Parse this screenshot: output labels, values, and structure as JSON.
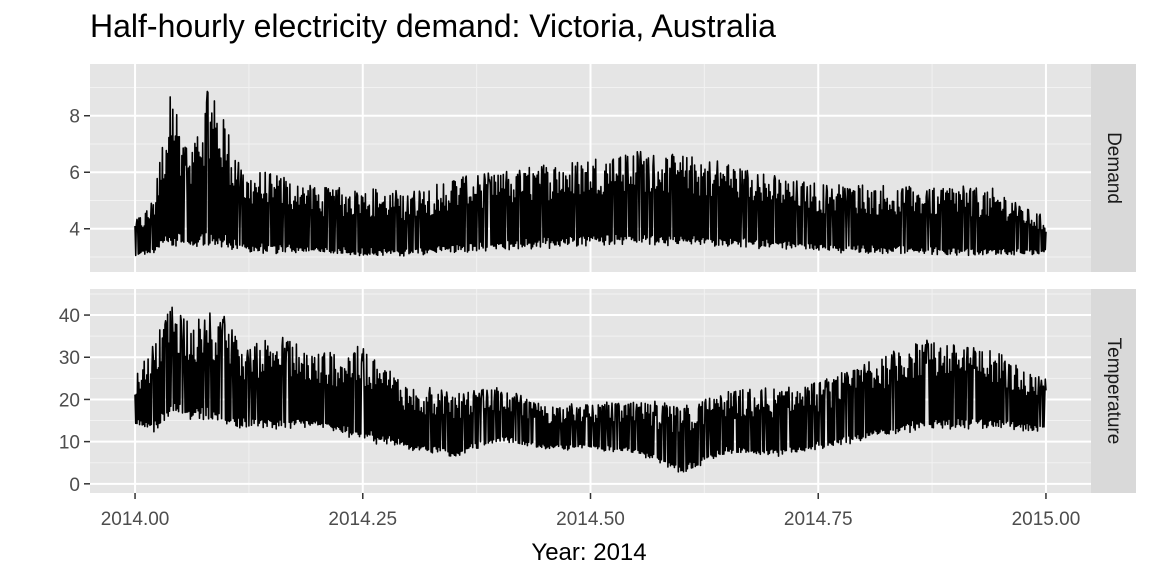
{
  "title": "Half-hourly electricity demand: Victoria, Australia",
  "chart_data": {
    "type": "line",
    "title": "Half-hourly electricity demand: Victoria, Australia",
    "xlabel": "Year: 2014",
    "xlim": [
      2014.0,
      2015.0
    ],
    "x_ticks": [
      "2014.00",
      "2014.25",
      "2014.50",
      "2014.75",
      "2015.00"
    ],
    "x_tick_values": [
      2014.0,
      2014.25,
      2014.5,
      2014.75,
      2015.0
    ],
    "grid": true,
    "background": "#e5e5e5",
    "panels": [
      {
        "strip": "Demand",
        "ylim": [
          2.8,
          9.5
        ],
        "y_ticks": [
          4,
          6,
          8
        ],
        "y_tick_labels": [
          "4",
          "6",
          "8"
        ],
        "series": [
          {
            "color": "#000000",
            "x": [
              2014.0,
              2014.02,
              2014.04,
              2014.06,
              2014.08,
              2014.1,
              2014.12,
              2014.15,
              2014.2,
              2014.25,
              2014.3,
              2014.35,
              2014.4,
              2014.45,
              2014.5,
              2014.55,
              2014.6,
              2014.65,
              2014.7,
              2014.75,
              2014.8,
              2014.85,
              2014.9,
              2014.95,
              2015.0
            ],
            "low": [
              3.0,
              3.1,
              3.3,
              3.2,
              3.2,
              3.2,
              3.1,
              3.1,
              3.1,
              3.0,
              3.0,
              3.1,
              3.2,
              3.3,
              3.4,
              3.4,
              3.4,
              3.3,
              3.3,
              3.2,
              3.1,
              3.1,
              3.0,
              3.0,
              3.1
            ],
            "high": [
              4.3,
              5.0,
              9.3,
              6.5,
              9.2,
              7.8,
              6.0,
              6.0,
              5.5,
              5.5,
              5.3,
              5.9,
              6.0,
              6.3,
              6.6,
              6.8,
              6.6,
              6.4,
              5.9,
              5.6,
              5.6,
              5.5,
              5.6,
              5.4,
              4.4
            ]
          }
        ]
      },
      {
        "strip": "Temperature",
        "ylim": [
          0,
          44
        ],
        "y_ticks": [
          0,
          10,
          20,
          30,
          40
        ],
        "y_tick_labels": [
          "0",
          "10",
          "20",
          "30",
          "40"
        ],
        "series": [
          {
            "color": "#000000",
            "x": [
              2014.0,
              2014.02,
              2014.04,
              2014.06,
              2014.08,
              2014.1,
              2014.12,
              2014.15,
              2014.2,
              2014.25,
              2014.3,
              2014.35,
              2014.4,
              2014.45,
              2014.5,
              2014.55,
              2014.6,
              2014.65,
              2014.7,
              2014.75,
              2014.8,
              2014.85,
              2014.9,
              2014.95,
              2015.0
            ],
            "low": [
              14,
              12,
              16,
              15,
              15,
              13,
              13,
              13,
              13,
              10,
              8,
              6,
              10,
              8,
              8,
              7,
              2,
              7,
              6,
              8,
              10,
              12,
              13,
              13,
              12
            ],
            "high": [
              26,
              34,
              43,
              38,
              41,
              40,
              32,
              36,
              31,
              33,
              24,
              22,
              23,
              19,
              19,
              20,
              19,
              22,
              23,
              24,
              29,
              35,
              34,
              31,
              25
            ]
          }
        ]
      }
    ]
  }
}
